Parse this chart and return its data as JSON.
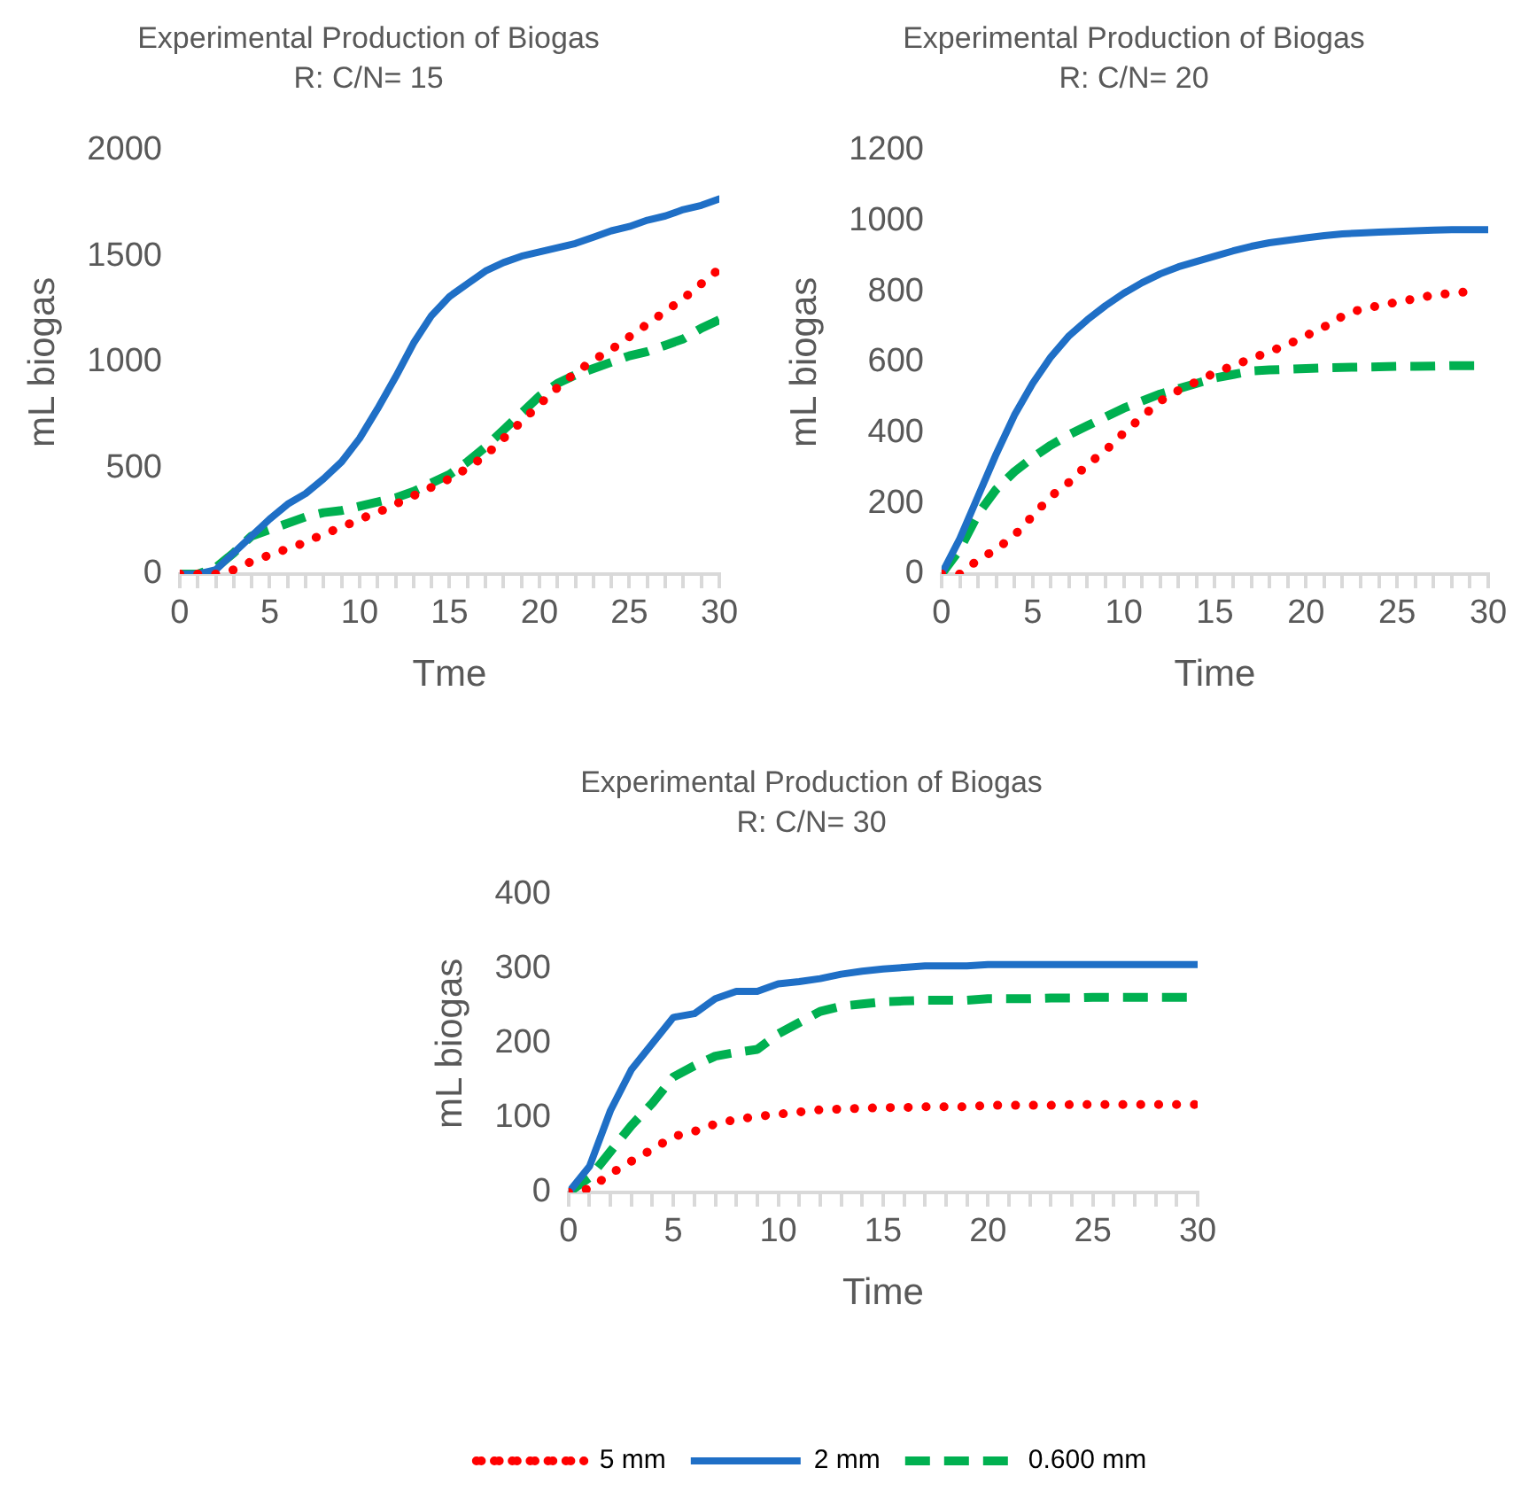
{
  "chart_data": [
    {
      "type": "line",
      "title": "Experimental Production of Biogas",
      "subtitle": "R: C/N= 15",
      "xlabel": "Tme",
      "ylabel": "mL biogas",
      "x": [
        0,
        1,
        2,
        3,
        4,
        5,
        6,
        7,
        8,
        9,
        10,
        11,
        12,
        13,
        14,
        15,
        16,
        17,
        18,
        19,
        20,
        21,
        22,
        23,
        24,
        25,
        26,
        27,
        28,
        29,
        30
      ],
      "xlim": [
        0,
        30
      ],
      "xticks": [
        0,
        {
          "value": 1,
          "label": null
        },
        {
          "value": 2,
          "label": null
        },
        {
          "value": 3,
          "label": null
        },
        {
          "value": 4,
          "label": null
        },
        5,
        {
          "value": 6,
          "label": null
        },
        {
          "value": 7,
          "label": null
        },
        {
          "value": 8,
          "label": null
        },
        {
          "value": 9,
          "label": null
        },
        10,
        {
          "value": 11,
          "label": null
        },
        {
          "value": 12,
          "label": null
        },
        {
          "value": 13,
          "label": null
        },
        {
          "value": 14,
          "label": null
        },
        15,
        {
          "value": 16,
          "label": null
        },
        {
          "value": 17,
          "label": null
        },
        {
          "value": 18,
          "label": null
        },
        {
          "value": 19,
          "label": null
        },
        20,
        {
          "value": 21,
          "label": null
        },
        {
          "value": 22,
          "label": null
        },
        {
          "value": 23,
          "label": null
        },
        {
          "value": 24,
          "label": null
        },
        25,
        {
          "value": 26,
          "label": null
        },
        {
          "value": 27,
          "label": null
        },
        {
          "value": 28,
          "label": null
        },
        {
          "value": 29,
          "label": null
        },
        30
      ],
      "ylim": [
        0,
        2000
      ],
      "yticks": [
        0,
        500,
        1000,
        1500,
        2000
      ],
      "marker": "none",
      "legend": false,
      "series": [
        {
          "color": "#ff0000",
          "line_style": "dotted",
          "values": [
            0,
            0,
            0,
            20,
            60,
            90,
            120,
            150,
            190,
            220,
            260,
            290,
            330,
            370,
            410,
            450,
            500,
            560,
            640,
            720,
            800,
            880,
            950,
            1010,
            1060,
            1120,
            1180,
            1240,
            1300,
            1370,
            1440
          ]
        },
        {
          "color": "#1f6fc6",
          "line_style": "solid",
          "values": [
            0,
            0,
            20,
            100,
            180,
            260,
            330,
            380,
            450,
            530,
            640,
            780,
            930,
            1090,
            1220,
            1310,
            1370,
            1430,
            1470,
            1500,
            1520,
            1540,
            1560,
            1590,
            1620,
            1640,
            1670,
            1690,
            1720,
            1740,
            1770
          ]
        },
        {
          "color": "#00b050",
          "line_style": "dashed",
          "values": [
            0,
            0,
            30,
            100,
            180,
            210,
            240,
            270,
            290,
            300,
            320,
            340,
            360,
            390,
            430,
            470,
            530,
            600,
            680,
            760,
            840,
            900,
            940,
            970,
            1000,
            1030,
            1050,
            1080,
            1110,
            1160,
            1200
          ]
        }
      ]
    },
    {
      "type": "line",
      "title": "Experimental Production of Biogas",
      "subtitle": "R: C/N= 20",
      "xlabel": "Time",
      "ylabel": "mL biogas",
      "x": [
        0,
        1,
        2,
        3,
        4,
        5,
        6,
        7,
        8,
        9,
        10,
        11,
        12,
        13,
        14,
        15,
        16,
        17,
        18,
        19,
        20,
        21,
        22,
        23,
        24,
        25,
        26,
        27,
        28,
        29,
        30
      ],
      "xlim": [
        0,
        30
      ],
      "xticks": [
        0,
        {
          "value": 1,
          "label": null
        },
        {
          "value": 2,
          "label": null
        },
        {
          "value": 3,
          "label": null
        },
        {
          "value": 4,
          "label": null
        },
        5,
        {
          "value": 6,
          "label": null
        },
        {
          "value": 7,
          "label": null
        },
        {
          "value": 8,
          "label": null
        },
        {
          "value": 9,
          "label": null
        },
        10,
        {
          "value": 11,
          "label": null
        },
        {
          "value": 12,
          "label": null
        },
        {
          "value": 13,
          "label": null
        },
        {
          "value": 14,
          "label": null
        },
        15,
        {
          "value": 16,
          "label": null
        },
        {
          "value": 17,
          "label": null
        },
        {
          "value": 18,
          "label": null
        },
        {
          "value": 19,
          "label": null
        },
        20,
        {
          "value": 21,
          "label": null
        },
        {
          "value": 22,
          "label": null
        },
        {
          "value": 23,
          "label": null
        },
        {
          "value": 24,
          "label": null
        },
        25,
        {
          "value": 26,
          "label": null
        },
        {
          "value": 27,
          "label": null
        },
        {
          "value": 28,
          "label": null
        },
        {
          "value": 29,
          "label": null
        },
        30
      ],
      "ylim": [
        0,
        1200
      ],
      "yticks": [
        0,
        200,
        400,
        600,
        800,
        1000,
        1200
      ],
      "marker": "none",
      "legend": false,
      "series": [
        {
          "color": "#ff0000",
          "line_style": "dotted",
          "values": [
            0,
            0,
            40,
            70,
            110,
            165,
            220,
            260,
            310,
            350,
            400,
            445,
            490,
            520,
            545,
            570,
            590,
            610,
            630,
            650,
            675,
            700,
            730,
            750,
            760,
            770,
            780,
            790,
            795,
            800,
            null
          ]
        },
        {
          "color": "#1f6fc6",
          "line_style": "solid",
          "values": [
            0,
            100,
            220,
            340,
            450,
            540,
            615,
            675,
            720,
            760,
            795,
            825,
            850,
            870,
            885,
            900,
            915,
            928,
            938,
            945,
            952,
            958,
            963,
            966,
            968,
            970,
            972,
            974,
            975,
            975,
            975
          ]
        },
        {
          "color": "#00b050",
          "line_style": "dashed",
          "values": [
            0,
            70,
            170,
            240,
            290,
            330,
            365,
            395,
            420,
            445,
            470,
            490,
            510,
            525,
            540,
            555,
            565,
            575,
            578,
            580,
            582,
            584,
            585,
            586,
            587,
            588,
            588,
            589,
            590,
            590,
            590
          ]
        }
      ]
    },
    {
      "type": "line",
      "title": "Experimental Production of Biogas",
      "subtitle": "R: C/N= 30",
      "xlabel": "Time",
      "ylabel": "mL biogas",
      "x": [
        0,
        1,
        2,
        3,
        4,
        5,
        6,
        7,
        8,
        9,
        10,
        11,
        12,
        13,
        14,
        15,
        16,
        17,
        18,
        19,
        20,
        21,
        22,
        23,
        24,
        25,
        26,
        27,
        28,
        29,
        30
      ],
      "xlim": [
        0,
        30
      ],
      "xticks": [
        0,
        {
          "value": 1,
          "label": null
        },
        {
          "value": 2,
          "label": null
        },
        {
          "value": 3,
          "label": null
        },
        {
          "value": 4,
          "label": null
        },
        5,
        {
          "value": 6,
          "label": null
        },
        {
          "value": 7,
          "label": null
        },
        {
          "value": 8,
          "label": null
        },
        {
          "value": 9,
          "label": null
        },
        10,
        {
          "value": 11,
          "label": null
        },
        {
          "value": 12,
          "label": null
        },
        {
          "value": 13,
          "label": null
        },
        {
          "value": 14,
          "label": null
        },
        15,
        {
          "value": 16,
          "label": null
        },
        {
          "value": 17,
          "label": null
        },
        {
          "value": 18,
          "label": null
        },
        {
          "value": 19,
          "label": null
        },
        20,
        {
          "value": 21,
          "label": null
        },
        {
          "value": 22,
          "label": null
        },
        {
          "value": 23,
          "label": null
        },
        {
          "value": 24,
          "label": null
        },
        25,
        {
          "value": 26,
          "label": null
        },
        {
          "value": 27,
          "label": null
        },
        {
          "value": 28,
          "label": null
        },
        {
          "value": 29,
          "label": null
        },
        30
      ],
      "ylim": [
        0,
        400
      ],
      "yticks": [
        0,
        100,
        200,
        300,
        400
      ],
      "marker": "none",
      "legend": "bottom",
      "series": [
        {
          "name": "5 mm",
          "color": "#ff0000",
          "line_style": "dotted",
          "values": [
            0,
            5,
            25,
            42,
            58,
            75,
            82,
            92,
            98,
            102,
            105,
            108,
            111,
            112,
            113,
            114,
            114,
            115,
            115,
            115,
            117,
            117,
            117,
            117,
            118,
            118,
            118,
            118,
            118,
            118,
            118
          ]
        },
        {
          "name": "2 mm",
          "color": "#1f6fc6",
          "line_style": "solid",
          "values": [
            0,
            35,
            110,
            165,
            200,
            235,
            240,
            260,
            270,
            270,
            280,
            283,
            287,
            293,
            297,
            300,
            302,
            304,
            304,
            304,
            306,
            306,
            306,
            306,
            306,
            306,
            306,
            306,
            306,
            306,
            306
          ]
        },
        {
          "name": "0.600 mm",
          "color": "#00b050",
          "line_style": "dashed",
          "values": [
            0,
            20,
            55,
            90,
            120,
            155,
            170,
            183,
            188,
            192,
            213,
            228,
            243,
            250,
            253,
            256,
            257,
            258,
            258,
            258,
            260,
            260,
            260,
            261,
            261,
            262,
            262,
            262,
            262,
            262,
            262
          ]
        }
      ]
    }
  ]
}
